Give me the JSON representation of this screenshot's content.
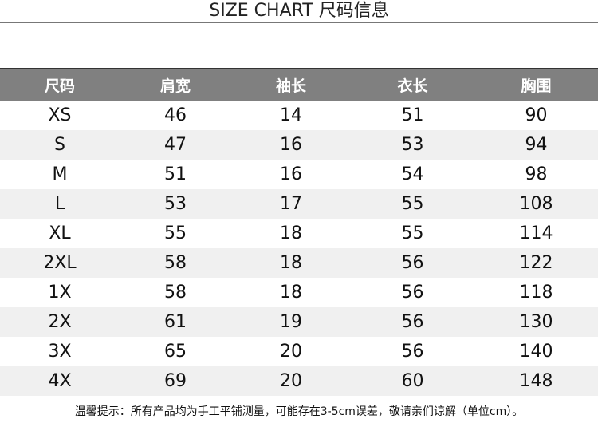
{
  "title": "SIZE CHART 尺码信息",
  "headers": [
    "尺码",
    "肩宽",
    "袖长",
    "衣长",
    "胸围"
  ],
  "rows": [
    [
      "XS",
      "46",
      "14",
      "51",
      "90"
    ],
    [
      "S",
      "47",
      "16",
      "53",
      "94"
    ],
    [
      "M",
      "51",
      "16",
      "54",
      "98"
    ],
    [
      "L",
      "53",
      "17",
      "55",
      "108"
    ],
    [
      "XL",
      "55",
      "18",
      "55",
      "114"
    ],
    [
      "2XL",
      "58",
      "18",
      "56",
      "122"
    ],
    [
      "1X",
      "58",
      "18",
      "56",
      "118"
    ],
    [
      "2X",
      "61",
      "19",
      "56",
      "130"
    ],
    [
      "3X",
      "65",
      "20",
      "56",
      "140"
    ],
    [
      "4X",
      "69",
      "20",
      "60",
      "148"
    ]
  ],
  "note": "温馨提示：所有产品均为手工平铺测量，可能存在3-5cm误差，敬请亲们谅解（单位cm）。",
  "colors": {
    "header_bg": "#808080",
    "alt_row_bg": "#f0f0f0"
  }
}
